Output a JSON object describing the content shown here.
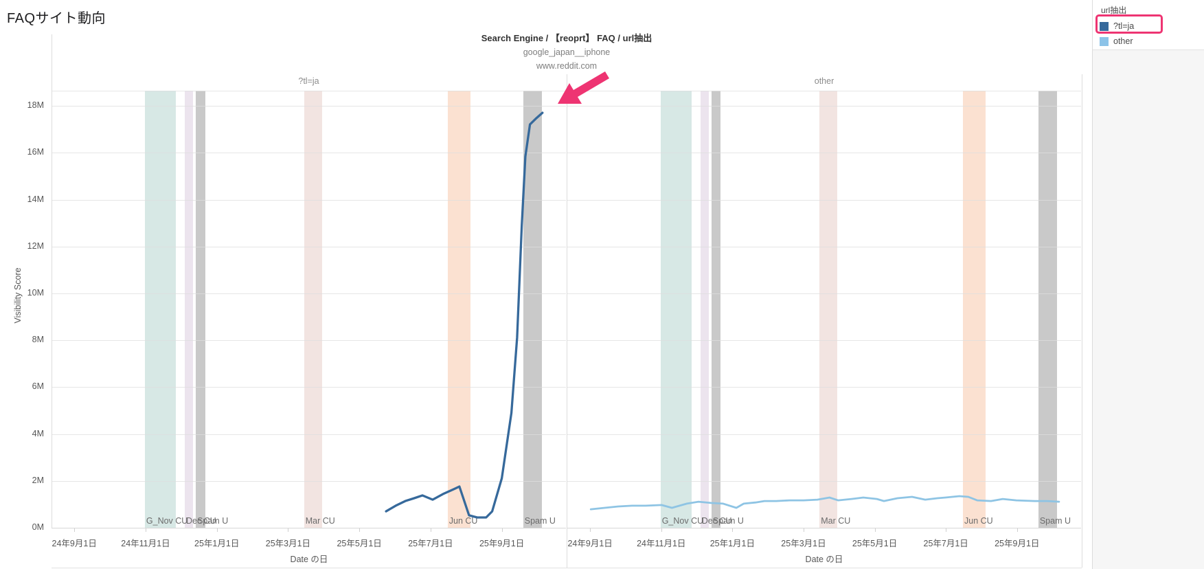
{
  "page": {
    "title": "FAQサイト動向"
  },
  "legend": {
    "title": "url抽出",
    "items": [
      {
        "label": "?tl=ja",
        "color": "#36699b",
        "highlighted": true
      },
      {
        "label": "other",
        "color": "#8cc3e8",
        "highlighted": false
      }
    ]
  },
  "annotation": {
    "color": "#ee3472",
    "type": "arrow-and-box-highlighting-tlja"
  },
  "chart_data": {
    "type": "line",
    "title_lines": [
      "Search Engine / 【reoprt】 FAQ / url抽出",
      "google_japan__iphone",
      "www.reddit.com"
    ],
    "ylabel": "Visibility Score",
    "xlabel": "Date の日",
    "y_unit": "M",
    "ylim": [
      0,
      18.65
    ],
    "x_domain_months": [
      -0.64,
      13.8
    ],
    "x_epoch_label": "months since 2024-09-01",
    "yticks": [
      {
        "v": 0,
        "label": "0M"
      },
      {
        "v": 2,
        "label": "2M"
      },
      {
        "v": 4,
        "label": "4M"
      },
      {
        "v": 6,
        "label": "6M"
      },
      {
        "v": 8,
        "label": "8M"
      },
      {
        "v": 10,
        "label": "10M"
      },
      {
        "v": 12,
        "label": "12M"
      },
      {
        "v": 14,
        "label": "14M"
      },
      {
        "v": 16,
        "label": "16M"
      },
      {
        "v": 18,
        "label": "18M"
      }
    ],
    "xticks": [
      {
        "m": 0,
        "label": "24年9月1日"
      },
      {
        "m": 2,
        "label": "24年11月1日"
      },
      {
        "m": 4,
        "label": "25年1月1日"
      },
      {
        "m": 6,
        "label": "25年3月1日"
      },
      {
        "m": 8,
        "label": "25年5月1日"
      },
      {
        "m": 10,
        "label": "25年7月1日"
      },
      {
        "m": 12,
        "label": "25年9月1日"
      }
    ],
    "bands": [
      {
        "label": "G_Nov CU",
        "m": [
          1.98,
          2.85
        ],
        "color": "#d7e8e5"
      },
      {
        "label": "Dec CU",
        "m": [
          3.1,
          3.33
        ],
        "color": "#ece4ee"
      },
      {
        "label": "Spam U",
        "m": [
          3.41,
          3.67
        ],
        "color": "#c9c9c9"
      },
      {
        "label": "Mar CU",
        "m": [
          6.45,
          6.95
        ],
        "color": "#f2e4e1"
      },
      {
        "label": "Jun CU",
        "m": [
          10.48,
          11.12
        ],
        "color": "#fbe1d1"
      },
      {
        "label": "Spam U",
        "m": [
          12.6,
          13.12
        ],
        "color": "#c9c9c9"
      }
    ],
    "panels": [
      {
        "header": "?tl=ja",
        "series": {
          "name": "?tl=ja",
          "color": "#36699b",
          "unit": "M visibility score",
          "points": [
            [
              8.75,
              0.7
            ],
            [
              9.02,
              0.94
            ],
            [
              9.29,
              1.14
            ],
            [
              9.54,
              1.26
            ],
            [
              9.77,
              1.38
            ],
            [
              10.06,
              1.2
            ],
            [
              10.35,
              1.44
            ],
            [
              10.64,
              1.64
            ],
            [
              10.81,
              1.76
            ],
            [
              11.08,
              0.53
            ],
            [
              11.31,
              0.44
            ],
            [
              11.56,
              0.44
            ],
            [
              11.73,
              0.7
            ],
            [
              12.0,
              2.11
            ],
            [
              12.27,
              4.9
            ],
            [
              12.43,
              8.12
            ],
            [
              12.56,
              12.9
            ],
            [
              12.66,
              15.84
            ],
            [
              12.79,
              17.21
            ],
            [
              12.95,
              17.45
            ],
            [
              13.14,
              17.71
            ]
          ]
        }
      },
      {
        "header": "other",
        "series": {
          "name": "other",
          "color": "#8ec4e4",
          "unit": "M visibility score",
          "points": [
            [
              0.02,
              0.79
            ],
            [
              0.41,
              0.85
            ],
            [
              0.79,
              0.91
            ],
            [
              1.18,
              0.94
            ],
            [
              1.56,
              0.94
            ],
            [
              2.01,
              0.97
            ],
            [
              2.3,
              0.85
            ],
            [
              2.72,
              1.03
            ],
            [
              3.05,
              1.11
            ],
            [
              3.4,
              1.06
            ],
            [
              3.74,
              1.03
            ],
            [
              4.11,
              0.85
            ],
            [
              4.32,
              1.03
            ],
            [
              4.65,
              1.08
            ],
            [
              4.9,
              1.14
            ],
            [
              5.23,
              1.14
            ],
            [
              5.61,
              1.17
            ],
            [
              6.0,
              1.17
            ],
            [
              6.39,
              1.2
            ],
            [
              6.73,
              1.29
            ],
            [
              6.97,
              1.17
            ],
            [
              7.35,
              1.23
            ],
            [
              7.68,
              1.29
            ],
            [
              8.06,
              1.23
            ],
            [
              8.26,
              1.14
            ],
            [
              8.64,
              1.26
            ],
            [
              9.05,
              1.32
            ],
            [
              9.42,
              1.2
            ],
            [
              9.76,
              1.26
            ],
            [
              9.99,
              1.29
            ],
            [
              10.38,
              1.35
            ],
            [
              10.63,
              1.32
            ],
            [
              10.88,
              1.17
            ],
            [
              11.27,
              1.14
            ],
            [
              11.6,
              1.23
            ],
            [
              11.98,
              1.17
            ],
            [
              12.5,
              1.14
            ],
            [
              12.85,
              1.14
            ],
            [
              13.18,
              1.11
            ]
          ]
        }
      }
    ]
  }
}
